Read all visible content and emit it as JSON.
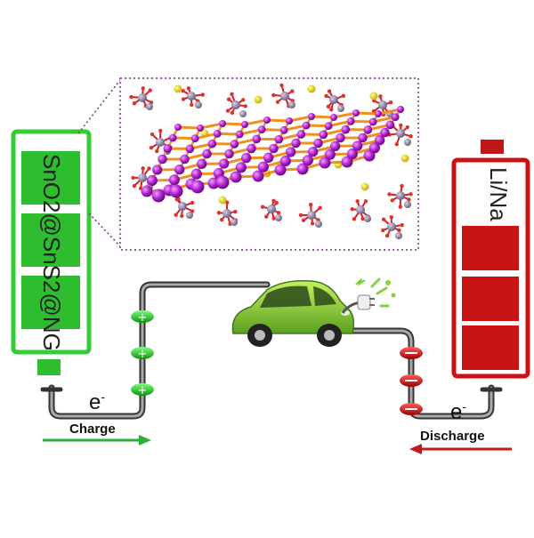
{
  "anode": {
    "label": "SnO2@SnS2@NG",
    "color": "#33cc33"
  },
  "cathode": {
    "label": "Li/Na",
    "color": "#cc1111"
  },
  "electron_symbol_left": "e",
  "electron_symbol_right": "e",
  "electron_superscript": "-",
  "charge": {
    "label": "Charge",
    "arrow_color": "#2fae3a"
  },
  "discharge": {
    "label": "Discharge",
    "arrow_color": "#c01a1a"
  },
  "icons": [
    "battery-anode-icon",
    "battery-cathode-icon",
    "electric-car-icon",
    "plug-icon",
    "molecular-structure-icon"
  ]
}
